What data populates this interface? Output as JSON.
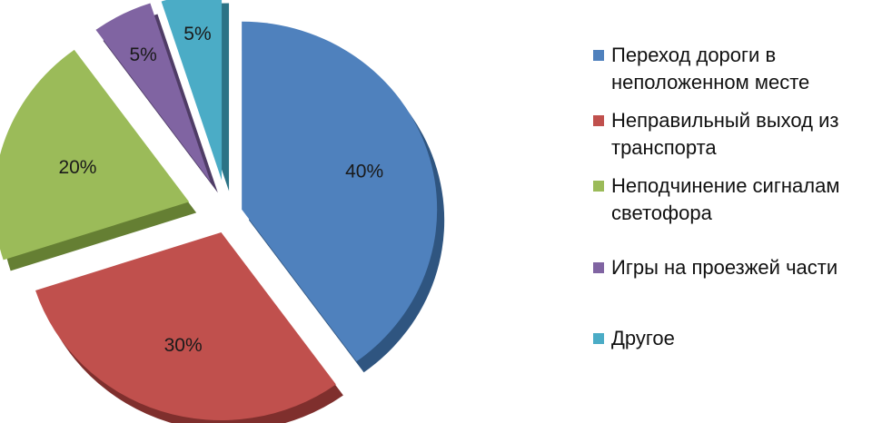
{
  "chart_data": {
    "type": "pie",
    "exploded": true,
    "three_d": true,
    "legend_position": "right",
    "slices": [
      {
        "name": "Переход дороги в\nнеположенном месте",
        "value": 40,
        "label": "40%",
        "color": "#4F81BD",
        "shade": "#2F5580"
      },
      {
        "name": "Неправильный выход из\nтранспорта",
        "value": 30,
        "label": "30%",
        "color": "#C0504D",
        "shade": "#7F2F2D"
      },
      {
        "name": "Неподчинение сигналам\nсветофора",
        "value": 20,
        "label": "20%",
        "color": "#9BBB59",
        "shade": "#657F33"
      },
      {
        "name": "Игры на проезжей части",
        "value": 5,
        "label": "5%",
        "color": "#8064A2",
        "shade": "#4F3C66"
      },
      {
        "name": "Другое",
        "value": 5,
        "label": "5%",
        "color": "#4BACC6",
        "shade": "#2B7386"
      }
    ]
  }
}
